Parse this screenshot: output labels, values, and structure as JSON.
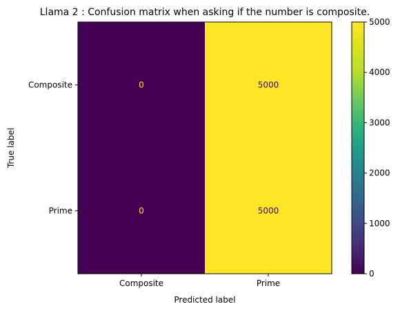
{
  "chart_data": {
    "type": "heatmap",
    "title": "Llama 2 : Confusion matrix when asking if the number is composite.",
    "xlabel": "Predicted label",
    "ylabel": "True label",
    "x_categories": [
      "Composite",
      "Prime"
    ],
    "y_categories": [
      "Composite",
      "Prime"
    ],
    "matrix": [
      [
        0,
        5000
      ],
      [
        0,
        5000
      ]
    ],
    "cell_labels": [
      [
        "0",
        "5000"
      ],
      [
        "0",
        "5000"
      ]
    ],
    "colormap": "viridis",
    "colors": {
      "low": "#440154",
      "high": "#fde725",
      "text_on_low": "#fde725",
      "text_on_high": "#440154"
    },
    "colorbar": {
      "range": [
        0,
        5000
      ],
      "ticks": [
        0,
        1000,
        2000,
        3000,
        4000,
        5000
      ],
      "tick_labels": [
        "0",
        "1000",
        "2000",
        "3000",
        "4000",
        "5000"
      ]
    }
  }
}
